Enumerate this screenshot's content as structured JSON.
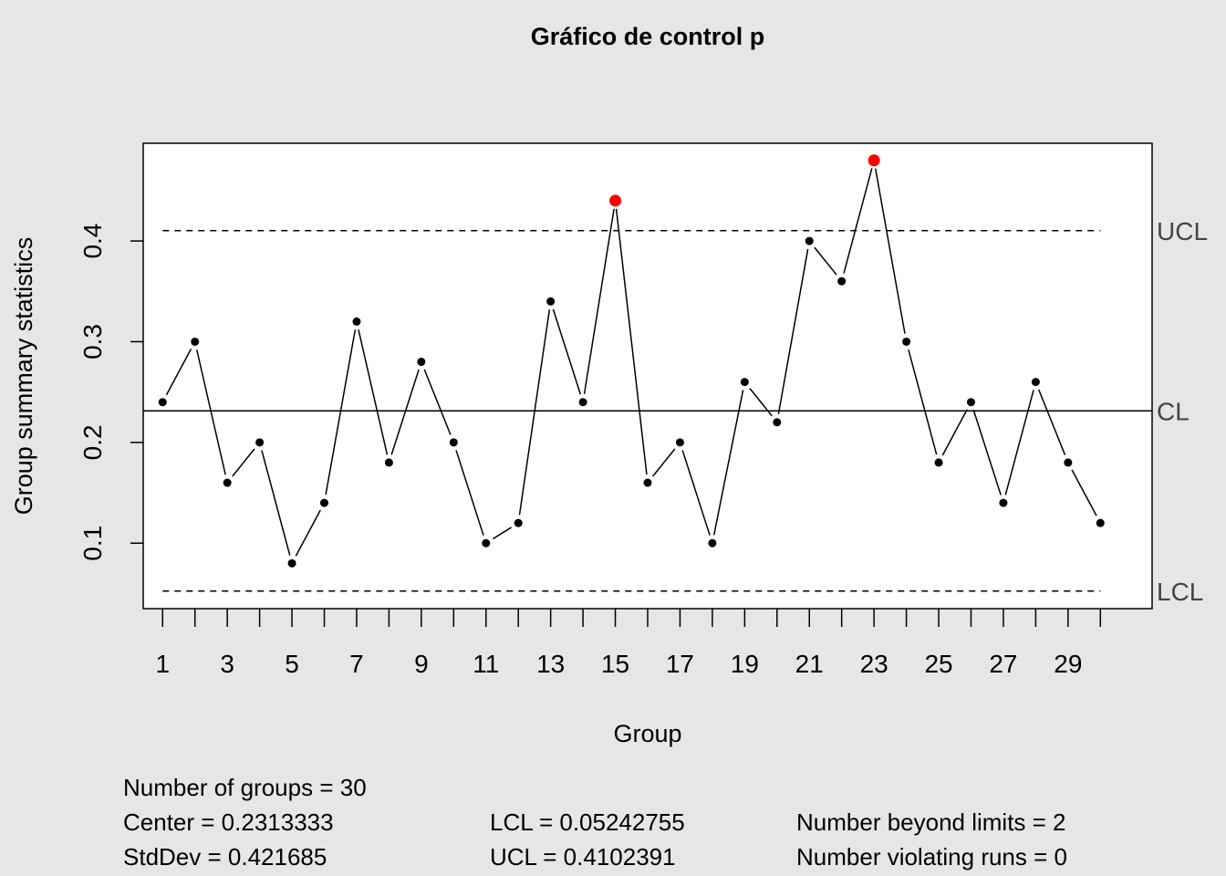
{
  "chart_data": {
    "type": "line",
    "title": "Gráfico de control p",
    "xlabel": "Group",
    "ylabel": "Group summary statistics",
    "x": [
      1,
      2,
      3,
      4,
      5,
      6,
      7,
      8,
      9,
      10,
      11,
      12,
      13,
      14,
      15,
      16,
      17,
      18,
      19,
      20,
      21,
      22,
      23,
      24,
      25,
      26,
      27,
      28,
      29,
      30
    ],
    "values": [
      0.24,
      0.3,
      0.16,
      0.2,
      0.08,
      0.14,
      0.32,
      0.18,
      0.28,
      0.2,
      0.1,
      0.12,
      0.34,
      0.24,
      0.44,
      0.16,
      0.2,
      0.1,
      0.26,
      0.22,
      0.4,
      0.36,
      0.48,
      0.3,
      0.18,
      0.24,
      0.14,
      0.26,
      0.18,
      0.12
    ],
    "beyond_limits_groups": [
      15,
      23
    ],
    "xlim": [
      0.4,
      31.6
    ],
    "ylim": [
      0.035,
      0.497
    ],
    "x_tick_labels": [
      "1",
      "3",
      "5",
      "7",
      "9",
      "11",
      "13",
      "15",
      "17",
      "19",
      "21",
      "23",
      "25",
      "27",
      "29"
    ],
    "y_tick_labels": [
      "0.1",
      "0.2",
      "0.3",
      "0.4"
    ],
    "center_line": 0.2313333,
    "ucl": 0.4102391,
    "lcl": 0.05242755,
    "limit_labels": {
      "ucl": "UCL",
      "cl": "CL",
      "lcl": "LCL"
    },
    "colors": {
      "point": "#000000",
      "beyond_limits": "#ff0000",
      "background": "#e6e6e6",
      "plot_area": "#ffffff"
    },
    "grid": false,
    "legend": "none"
  },
  "stats": {
    "groups": "Number of groups = 30",
    "center": "Center = 0.2313333",
    "stddev": "StdDev = 0.421685",
    "lcl": "LCL = 0.05242755",
    "ucl": "UCL = 0.4102391",
    "beyond": "Number beyond limits = 2",
    "runs": "Number violating runs = 0"
  }
}
